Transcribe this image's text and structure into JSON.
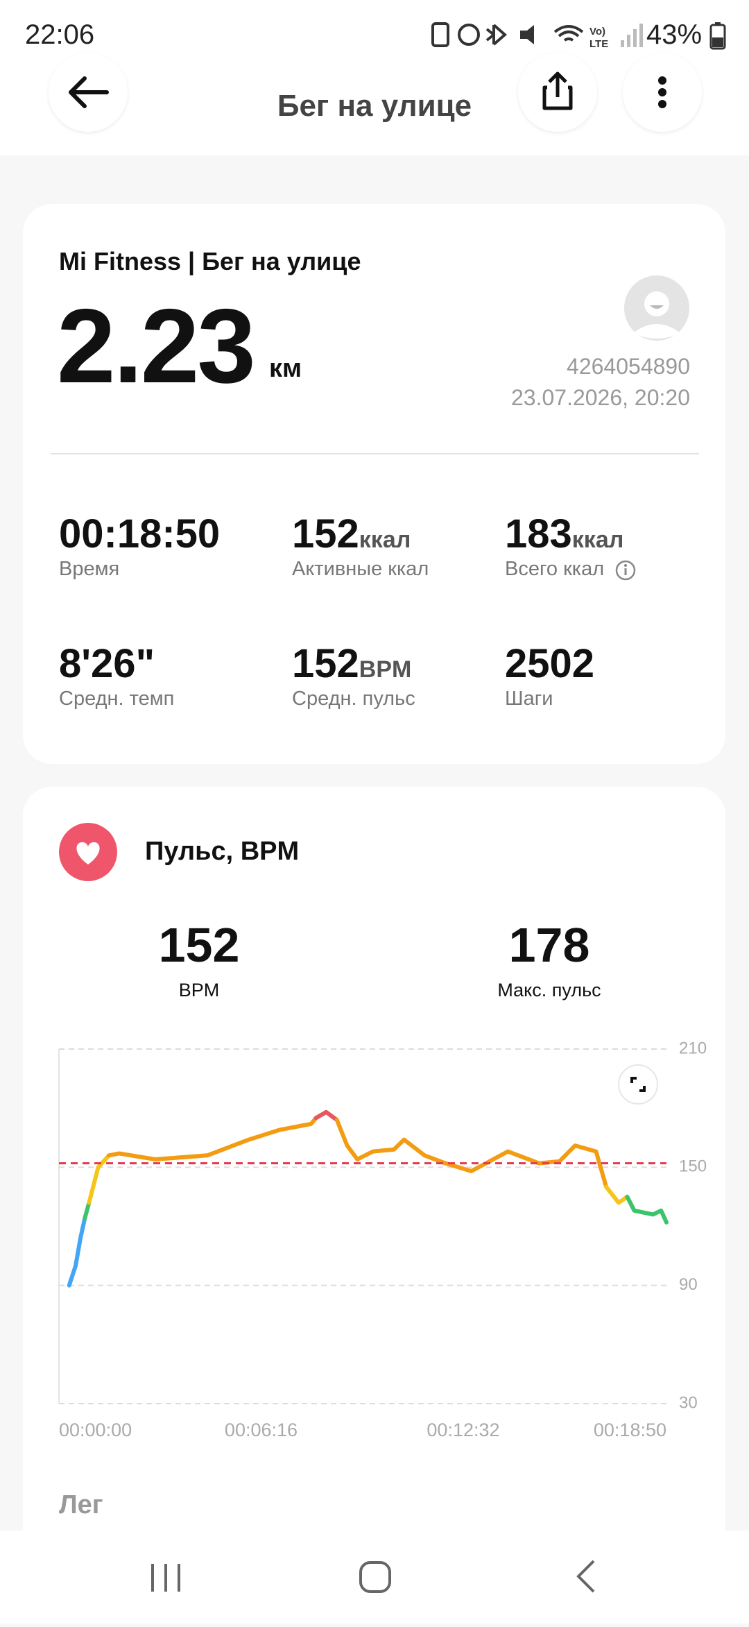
{
  "status_bar": {
    "time": "22:06",
    "battery": "43%"
  },
  "header": {
    "title": "Бег на улице"
  },
  "summary": {
    "source": "Mi Fitness | Бег на улице",
    "distance": 2.23,
    "distance_unit": "км",
    "device_id": "4264054890",
    "datetime": "23.07.2026, 20:20",
    "stats": [
      {
        "value": "00:18:50",
        "label": "Время"
      },
      {
        "value": 152,
        "unit": "ккал",
        "label": "Активные ккал"
      },
      {
        "value": 183,
        "unit": "ккал",
        "label": "Всего ккал"
      },
      {
        "value": "8'26\"",
        "label": "Средн. темп"
      },
      {
        "value": 152,
        "unit": "BPM",
        "label": "Средн. пульс"
      },
      {
        "value": 2502,
        "label": "Шаги"
      }
    ]
  },
  "heart": {
    "title": "Пульс, BPM",
    "avg_value": 152,
    "avg_label": "BPM",
    "max_value": 178,
    "max_label": "Макс. пульс",
    "chart_data": {
      "type": "line",
      "xlim": [
        0,
        1130
      ],
      "xticks": [
        {
          "value": 0,
          "label": "00:00:00"
        },
        {
          "value": 376,
          "label": "00:06:16"
        },
        {
          "value": 752,
          "label": "00:12:32"
        },
        {
          "value": 1130,
          "label": "00:18:50"
        }
      ],
      "ylim": [
        30,
        210
      ],
      "yticks": [
        30,
        90,
        150,
        210
      ],
      "grid": true,
      "avg_line_color": "#e8384f",
      "segments": [
        {
          "color": "#42a5f5",
          "x": [
            19,
            31,
            40,
            48
          ],
          "values": [
            90,
            100,
            114,
            124
          ]
        },
        {
          "color": "#3cc46a",
          "x": [
            48,
            56
          ],
          "values": [
            124,
            132
          ]
        },
        {
          "color": "#f5c518",
          "x": [
            56,
            73,
            93
          ],
          "values": [
            132,
            150,
            156
          ]
        },
        {
          "color": "#f39c12",
          "x": [
            93,
            112,
            179,
            276,
            353,
            411,
            469,
            478
          ],
          "values": [
            156,
            157,
            154,
            156,
            164,
            169,
            172,
            175
          ]
        },
        {
          "color": "#e8575a",
          "x": [
            478,
            497,
            517
          ],
          "values": [
            175,
            178,
            174
          ]
        },
        {
          "color": "#f39c12",
          "x": [
            517,
            536,
            555,
            584,
            623,
            642,
            680,
            719,
            767,
            835,
            893,
            931,
            960,
            999,
            1018
          ],
          "values": [
            174,
            161,
            154,
            158,
            159,
            164,
            156,
            152,
            148,
            158,
            152,
            153,
            161,
            158,
            140
          ]
        },
        {
          "color": "#f5c518",
          "x": [
            1018,
            1041,
            1057
          ],
          "values": [
            140,
            132,
            135
          ]
        },
        {
          "color": "#3cc46a",
          "x": [
            1057,
            1070,
            1105,
            1120,
            1130
          ],
          "values": [
            135,
            128,
            126,
            128,
            122
          ]
        }
      ]
    }
  },
  "next_section": {
    "title": "Лег"
  }
}
